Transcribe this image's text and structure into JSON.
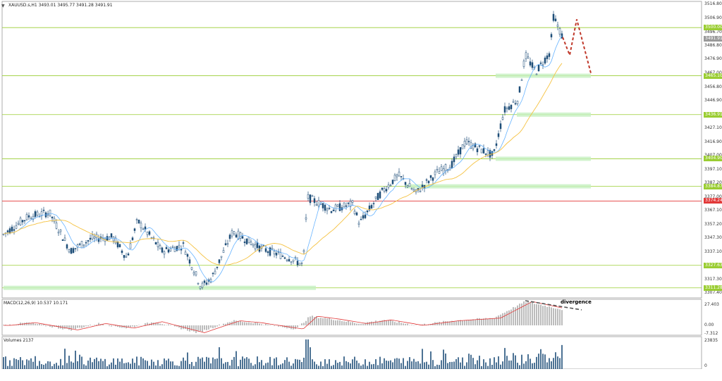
{
  "chart": {
    "symbol_header": "XAUUSD.s,H1  3493.01 3495.77 3491.28 3491.91",
    "macd_header": "MACD(12,26,9) 10.537 10.171",
    "volume_header": "Volumes 2137",
    "annotation": "divergence",
    "colors": {
      "bull": "#1f4e79",
      "support": "#9acd32",
      "zone": "#c6f0c0",
      "resistance": "#e23a3a",
      "ma_fast": "#66b3ff",
      "ma_slow": "#f5c242",
      "macd_signal": "#e23a3a",
      "histogram": "#a0a0a0",
      "volume": "#1f4e79",
      "forecast": "#c0392b"
    },
    "price_axis": [
      "3516.80",
      "3506.90",
      "3496.70",
      "3486.80",
      "3476.90",
      "3467.00",
      "3456.80",
      "3446.90",
      "3437.00",
      "3427.10",
      "3416.90",
      "3407.00",
      "3397.10",
      "3387.20",
      "3377.00",
      "3367.10",
      "3357.20",
      "3347.30",
      "3337.10",
      "3327.20",
      "3317.30",
      "3307.40"
    ],
    "macd_axis": [
      "27.403",
      "0.00",
      "-7.312"
    ],
    "volume_axis": [
      "23835",
      "0"
    ],
    "levels": [
      {
        "price": "3500.00",
        "kind": "support"
      },
      {
        "price": "3465.10",
        "kind": "support"
      },
      {
        "price": "3436.91",
        "kind": "support"
      },
      {
        "price": "3404.90",
        "kind": "support"
      },
      {
        "price": "3384.87",
        "kind": "support"
      },
      {
        "price": "3374.24",
        "kind": "resistance"
      },
      {
        "price": "3327.63",
        "kind": "support"
      },
      {
        "price": "3311.28",
        "kind": "support"
      }
    ],
    "current_price": "3491.91"
  }
}
